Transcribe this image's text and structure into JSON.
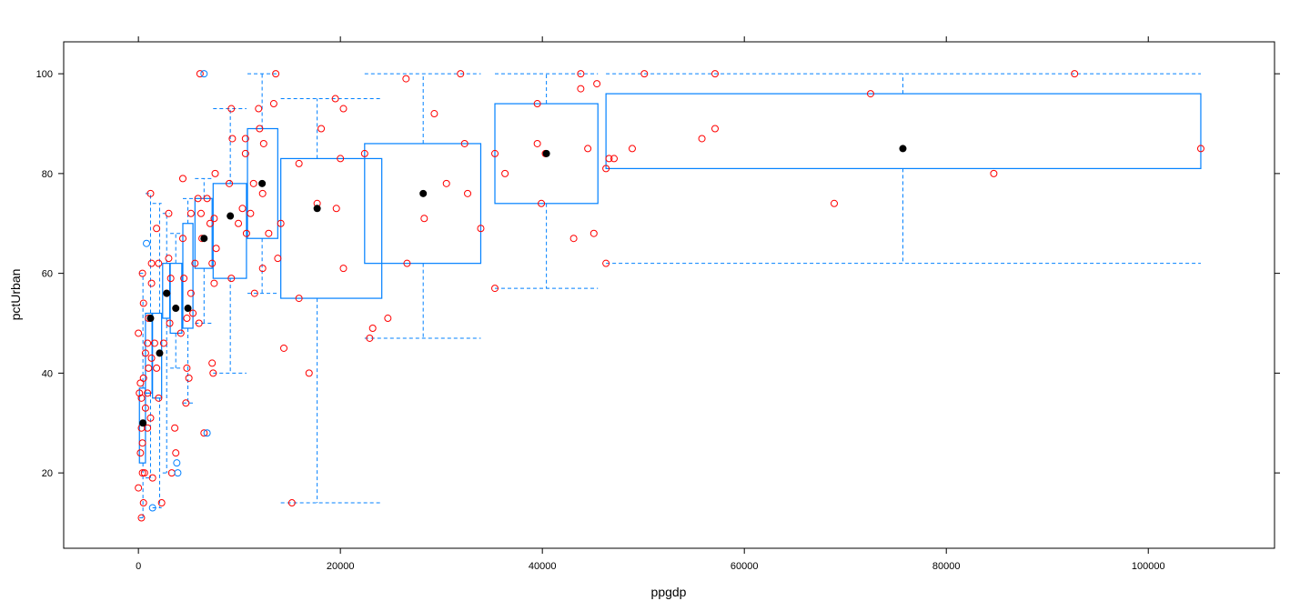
{
  "chart_data": {
    "type": "box",
    "title": "",
    "xlabel": "ppgdp",
    "ylabel": "pctUrban",
    "xlim": [
      -7400,
      112500
    ],
    "ylim": [
      4.9,
      106.4
    ],
    "xticks": [
      0,
      20000,
      40000,
      60000,
      80000,
      100000
    ],
    "yticks": [
      20,
      40,
      60,
      80,
      100
    ],
    "grid": false,
    "colors": {
      "box": "#0080ff",
      "points": "#ff0000",
      "outlier_points": "#0080ff",
      "median": "#000000"
    },
    "boxes": [
      {
        "x": [
          100,
          700
        ],
        "median_x": 450,
        "median": 30,
        "q1": 22,
        "q3": 37,
        "whisker": [
          11,
          60
        ]
      },
      {
        "x": [
          700,
          1350
        ],
        "median_x": 1200,
        "median": 51,
        "q1": 36,
        "q3": 52,
        "whisker": [
          19,
          76
        ]
      },
      {
        "x": [
          1400,
          2300
        ],
        "median_x": 2100,
        "median": 44,
        "q1": 35,
        "q3": 52,
        "whisker": [
          13,
          74
        ]
      },
      {
        "x": [
          2400,
          3100
        ],
        "median_x": 2800,
        "median": 56,
        "q1": 51,
        "q3": 62,
        "whisker": [
          20,
          72
        ]
      },
      {
        "x": [
          3150,
          4300
        ],
        "median_x": 3700,
        "median": 53,
        "q1": 48,
        "q3": 62,
        "whisker": [
          41,
          68
        ]
      },
      {
        "x": [
          4400,
          5400
        ],
        "median_x": 4900,
        "median": 53,
        "q1": 49,
        "q3": 70,
        "whisker": [
          34,
          75
        ]
      },
      {
        "x": [
          5600,
          7300
        ],
        "median_x": 6500,
        "median": 67,
        "q1": 61,
        "q3": 75,
        "whisker": [
          50,
          79
        ]
      },
      {
        "x": [
          7400,
          10700
        ],
        "median_x": 9100,
        "median": 71.5,
        "q1": 59,
        "q3": 78,
        "whisker": [
          40,
          93
        ]
      },
      {
        "x": [
          10800,
          13800
        ],
        "median_x": 12250,
        "median": 78,
        "q1": 67,
        "q3": 89,
        "whisker": [
          56,
          100
        ]
      },
      {
        "x": [
          14100,
          24100
        ],
        "median_x": 17700,
        "median": 73,
        "q1": 55,
        "q3": 83,
        "whisker": [
          14,
          95
        ]
      },
      {
        "x": [
          22400,
          33900
        ],
        "median_x": 28200,
        "median": 76,
        "q1": 62,
        "q3": 86,
        "whisker": [
          47,
          100
        ]
      },
      {
        "x": [
          35300,
          45500
        ],
        "median_x": 40400,
        "median": 84,
        "q1": 74,
        "q3": 94,
        "whisker": [
          57,
          100
        ]
      },
      {
        "x": [
          46300,
          105200
        ],
        "median_x": 75700,
        "median": 85,
        "q1": 81,
        "q3": 96,
        "whisker": [
          62,
          100
        ]
      }
    ],
    "points": [
      [
        92700,
        100
      ],
      [
        57100,
        100
      ],
      [
        50100,
        100
      ],
      [
        43800,
        100
      ],
      [
        72500,
        96
      ],
      [
        45400,
        98
      ],
      [
        43800,
        97
      ],
      [
        39500,
        94
      ],
      [
        39500,
        86
      ],
      [
        44500,
        85
      ],
      [
        48900,
        85
      ],
      [
        46600,
        83
      ],
      [
        47100,
        83
      ],
      [
        46300,
        81
      ],
      [
        55800,
        87
      ],
      [
        57100,
        89
      ],
      [
        84700,
        80
      ],
      [
        105200,
        85
      ],
      [
        68900,
        74
      ],
      [
        39900,
        74
      ],
      [
        45100,
        68
      ],
      [
        43100,
        67
      ],
      [
        46300,
        62
      ],
      [
        35300,
        57
      ],
      [
        35300,
        84
      ],
      [
        36300,
        80
      ],
      [
        40300,
        84
      ],
      [
        26500,
        99
      ],
      [
        31900,
        100
      ],
      [
        29300,
        92
      ],
      [
        32300,
        86
      ],
      [
        30500,
        78
      ],
      [
        32600,
        76
      ],
      [
        28300,
        71
      ],
      [
        33900,
        69
      ],
      [
        26600,
        62
      ],
      [
        22400,
        84
      ],
      [
        23200,
        49
      ],
      [
        22900,
        47
      ],
      [
        24700,
        51
      ],
      [
        19500,
        95
      ],
      [
        20300,
        93
      ],
      [
        18100,
        89
      ],
      [
        15900,
        82
      ],
      [
        17700,
        74
      ],
      [
        19600,
        73
      ],
      [
        20000,
        83
      ],
      [
        20300,
        61
      ],
      [
        15900,
        55
      ],
      [
        14400,
        45
      ],
      [
        16900,
        40
      ],
      [
        15200,
        14
      ],
      [
        13600,
        100
      ],
      [
        13400,
        94
      ],
      [
        14100,
        70
      ],
      [
        13800,
        63
      ],
      [
        12900,
        68
      ],
      [
        12400,
        86
      ],
      [
        12000,
        89
      ],
      [
        11900,
        93
      ],
      [
        12300,
        76
      ],
      [
        12300,
        61
      ],
      [
        11400,
        78
      ],
      [
        11500,
        56
      ],
      [
        11100,
        72
      ],
      [
        10600,
        87
      ],
      [
        10600,
        84
      ],
      [
        10700,
        68
      ],
      [
        9900,
        70
      ],
      [
        10300,
        73
      ],
      [
        9200,
        93
      ],
      [
        9300,
        87
      ],
      [
        9000,
        78
      ],
      [
        9200,
        59
      ],
      [
        7500,
        71
      ],
      [
        7600,
        80
      ],
      [
        6800,
        75
      ],
      [
        7300,
        42
      ],
      [
        7400,
        40
      ],
      [
        7700,
        65
      ],
      [
        7500,
        58
      ],
      [
        7300,
        62
      ],
      [
        6100,
        100
      ],
      [
        6500,
        28
      ],
      [
        7100,
        70
      ],
      [
        6300,
        67
      ],
      [
        6200,
        72
      ],
      [
        6000,
        50
      ],
      [
        5900,
        75
      ],
      [
        5600,
        62
      ],
      [
        5400,
        52
      ],
      [
        5200,
        72
      ],
      [
        5200,
        56
      ],
      [
        5000,
        39
      ],
      [
        4800,
        51
      ],
      [
        4800,
        41
      ],
      [
        4700,
        34
      ],
      [
        4400,
        79
      ],
      [
        4400,
        67
      ],
      [
        4500,
        59
      ],
      [
        4200,
        48
      ],
      [
        3200,
        59
      ],
      [
        3600,
        29
      ],
      [
        3700,
        24
      ],
      [
        3300,
        20
      ],
      [
        3000,
        63
      ],
      [
        3000,
        72
      ],
      [
        2800,
        56
      ],
      [
        3100,
        50
      ],
      [
        2500,
        46
      ],
      [
        2300,
        14
      ],
      [
        1800,
        69
      ],
      [
        2000,
        62
      ],
      [
        1600,
        46
      ],
      [
        1800,
        41
      ],
      [
        2000,
        35
      ],
      [
        1400,
        19
      ],
      [
        1200,
        76
      ],
      [
        1300,
        62
      ],
      [
        1300,
        58
      ],
      [
        1000,
        41
      ],
      [
        900,
        36
      ],
      [
        1200,
        31
      ],
      [
        900,
        29
      ],
      [
        600,
        20
      ],
      [
        500,
        14
      ],
      [
        300,
        11
      ],
      [
        0,
        17
      ],
      [
        200,
        24
      ],
      [
        300,
        29
      ],
      [
        200,
        38
      ],
      [
        0,
        48
      ],
      [
        400,
        60
      ],
      [
        500,
        54
      ],
      [
        1000,
        51
      ],
      [
        700,
        44
      ],
      [
        500,
        39
      ],
      [
        700,
        33
      ],
      [
        400,
        26
      ],
      [
        400,
        20
      ],
      [
        900,
        46
      ],
      [
        1300,
        43
      ],
      [
        100,
        36
      ],
      [
        300,
        35
      ]
    ],
    "outlier_points": [
      [
        6500,
        100
      ],
      [
        6800,
        28
      ],
      [
        3800,
        22
      ],
      [
        3900,
        20
      ],
      [
        1400,
        13
      ],
      [
        800,
        66
      ]
    ]
  }
}
